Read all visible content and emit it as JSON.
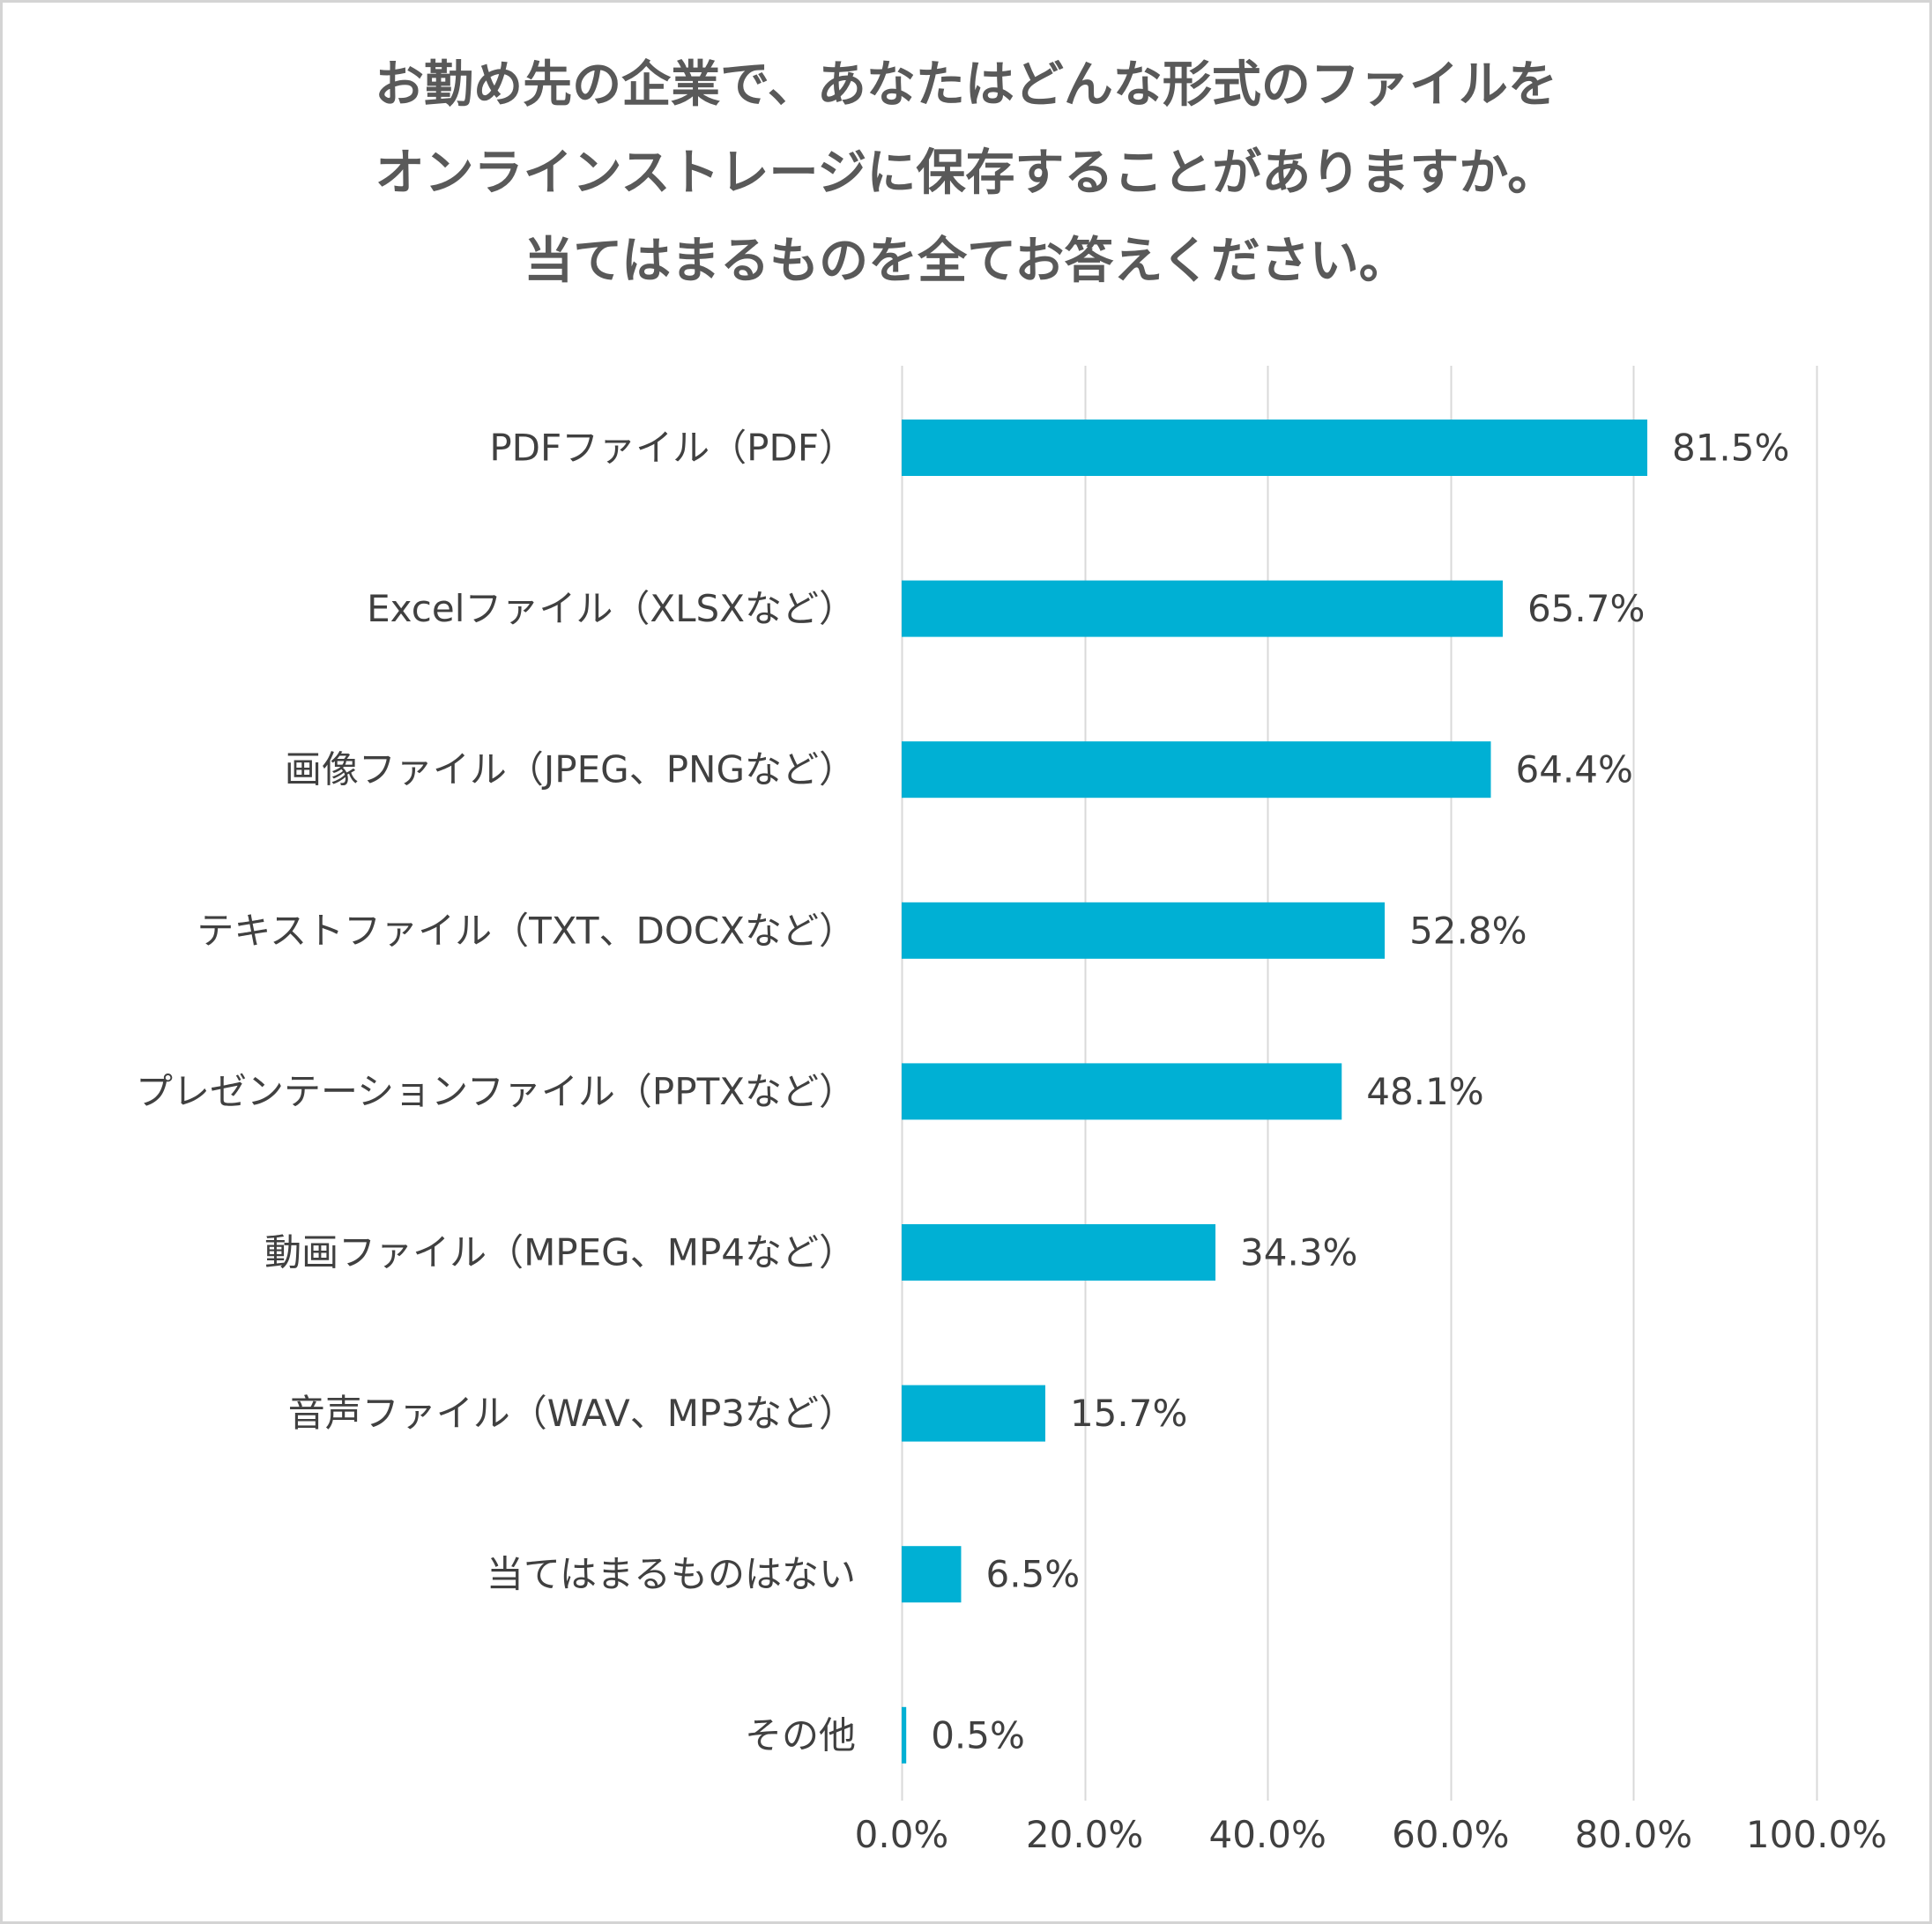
{
  "chart_data": {
    "type": "bar",
    "orientation": "horizontal",
    "title_lines": [
      "お勤め先の企業で、あなたはどんな形式のファイルを",
      "オンラインストレージに保存することがありますか。",
      "当てはまるものを全てお答えください。"
    ],
    "categories": [
      "PDFファイル（PDF）",
      "Excelファイル（XLSXなど）",
      "画像ファイル（JPEG、PNGなど）",
      "テキストファイル（TXT、DOCXなど）",
      "プレゼンテーションファイル（PPTXなど）",
      "動画ファイル（MPEG、MP4など）",
      "音声ファイル（WAV、MP3など）",
      "当てはまるものはない",
      "その他"
    ],
    "values": [
      81.5,
      65.7,
      64.4,
      52.8,
      48.1,
      34.3,
      15.7,
      6.5,
      0.5
    ],
    "data_labels": [
      "81.5%",
      "65.7%",
      "64.4%",
      "52.8%",
      "48.1%",
      "34.3%",
      "15.7%",
      "6.5%",
      "0.5%"
    ],
    "x_ticks": [
      0,
      20,
      40,
      60,
      80,
      100
    ],
    "x_tick_labels": [
      "0.0%",
      "20.0%",
      "40.0%",
      "60.0%",
      "80.0%",
      "100.0%"
    ],
    "xlim": [
      0,
      100
    ],
    "xlabel": "",
    "ylabel": "",
    "grid": true,
    "legend": "none",
    "colors": {
      "bar": "#00b0d4",
      "grid": "#d9d9d9",
      "text": "#404040",
      "title": "#595959"
    }
  }
}
